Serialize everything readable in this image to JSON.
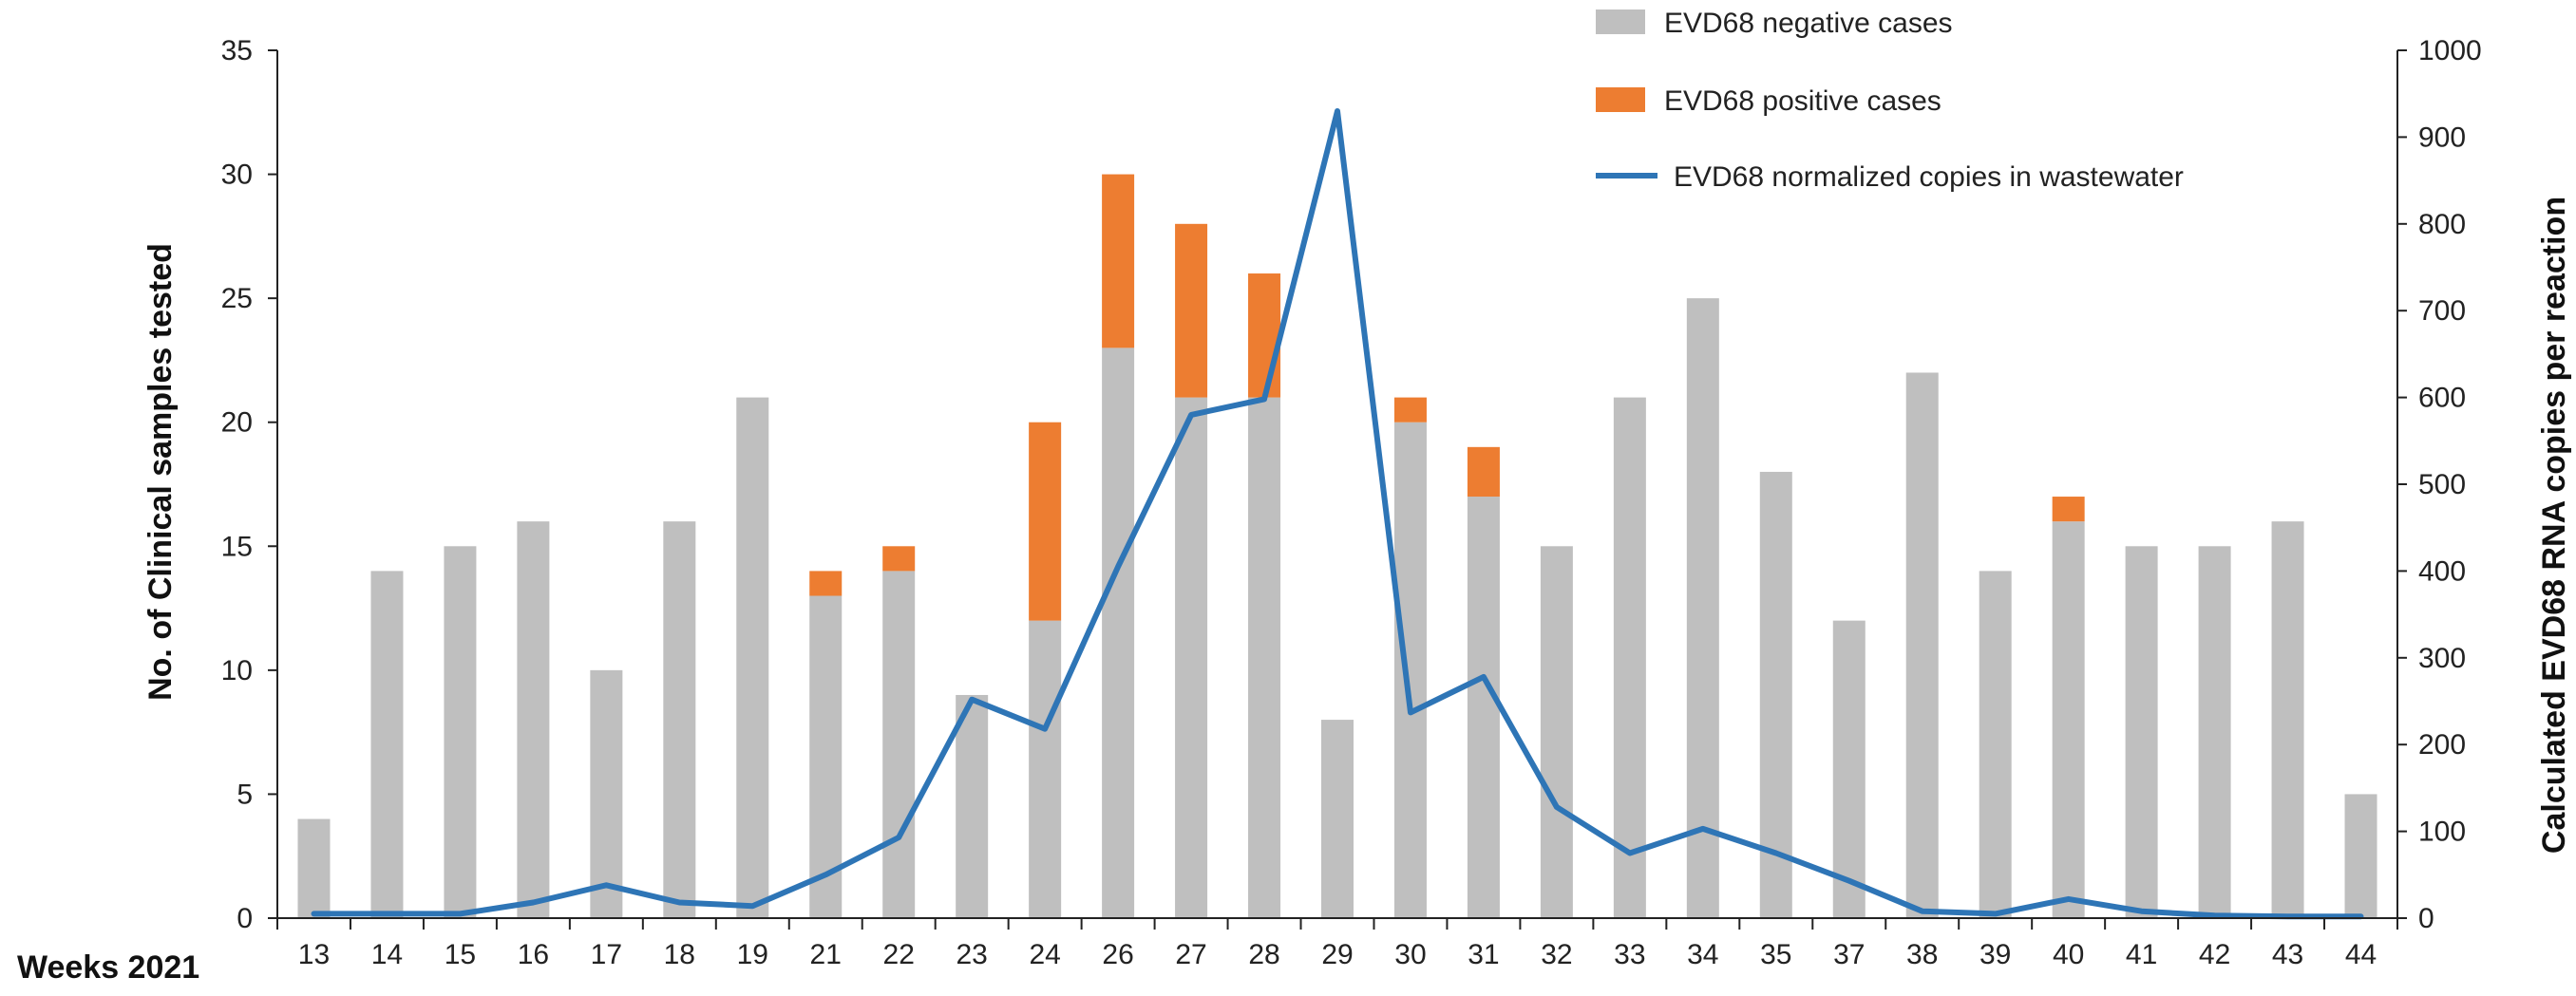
{
  "chart_data": {
    "type": "bar",
    "stacked": true,
    "corner_label": "Weeks 2021",
    "categories": [
      "13",
      "14",
      "15",
      "16",
      "17",
      "18",
      "19",
      "21",
      "22",
      "23",
      "24",
      "26",
      "27",
      "28",
      "29",
      "30",
      "31",
      "32",
      "33",
      "34",
      "35",
      "37",
      "38",
      "39",
      "40",
      "41",
      "42",
      "43",
      "44"
    ],
    "series": [
      {
        "name": "EVD68 negative cases",
        "kind": "bar",
        "axis": "left",
        "color": "#BFBFBF",
        "values": [
          4,
          14,
          15,
          16,
          10,
          16,
          21,
          13,
          14,
          9,
          12,
          23,
          21,
          21,
          8,
          20,
          17,
          15,
          21,
          25,
          18,
          12,
          22,
          14,
          16,
          15,
          15,
          16,
          5
        ]
      },
      {
        "name": "EVD68 positive cases",
        "kind": "bar",
        "axis": "left",
        "color": "#ED7D31",
        "values": [
          0,
          0,
          0,
          0,
          0,
          0,
          0,
          1,
          1,
          0,
          8,
          7,
          7,
          5,
          0,
          1,
          2,
          0,
          0,
          0,
          0,
          0,
          0,
          0,
          1,
          0,
          0,
          0,
          0
        ]
      },
      {
        "name": "EVD68 normalized copies in wastewater",
        "kind": "line",
        "axis": "right",
        "color": "#2E75B6",
        "values": [
          5,
          5,
          5,
          18,
          38,
          18,
          14,
          50,
          93,
          252,
          218,
          405,
          580,
          598,
          930,
          237,
          278,
          128,
          75,
          103,
          75,
          43,
          8,
          5,
          22,
          8,
          3,
          2,
          2
        ]
      }
    ],
    "left_axis": {
      "title": "No. of Clinical samples tested",
      "range": [
        0,
        35
      ],
      "ticks": [
        "0",
        "5",
        "10",
        "15",
        "20",
        "25",
        "30",
        "35"
      ]
    },
    "right_axis": {
      "title": "Calculated EVD68 RNA copies per reaction",
      "range": [
        0,
        1000
      ],
      "ticks": [
        "0",
        "100",
        "200",
        "300",
        "400",
        "500",
        "600",
        "700",
        "800",
        "900",
        "1000"
      ]
    },
    "legend_position": "top-right"
  }
}
